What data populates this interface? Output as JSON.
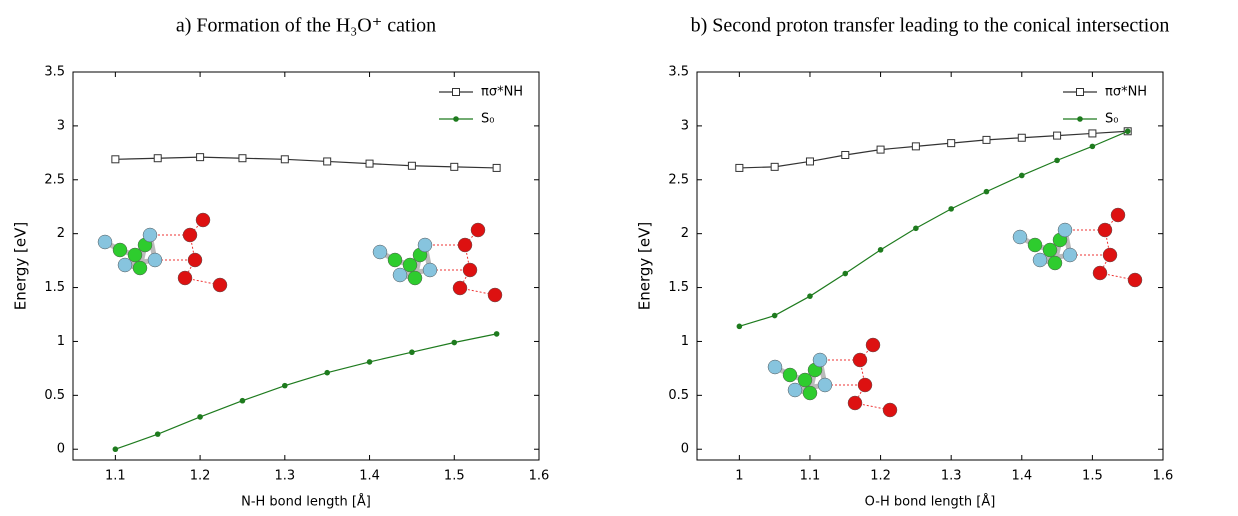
{
  "chart_data": [
    {
      "type": "line",
      "title": "a) Formation of the H₃O⁺ cation",
      "x_label": "N-H bond length [Å]",
      "y_label": "Energy [eV]",
      "x": [
        1.1,
        1.15,
        1.2,
        1.25,
        1.3,
        1.35,
        1.4,
        1.45,
        1.5,
        1.55
      ],
      "series": [
        {
          "name": "πσ*NH",
          "color": "#333333",
          "marker": "square",
          "values": [
            2.69,
            2.7,
            2.71,
            2.7,
            2.69,
            2.67,
            2.65,
            2.63,
            2.62,
            2.61
          ]
        },
        {
          "name": "S₀",
          "color": "#1e7b1e",
          "marker": "circle",
          "values": [
            0.0,
            0.14,
            0.3,
            0.45,
            0.59,
            0.71,
            0.81,
            0.9,
            0.99,
            1.07
          ]
        }
      ],
      "xlim": [
        1.05,
        1.6
      ],
      "ylim": [
        -0.1,
        3.5
      ],
      "xticks": [
        1.1,
        1.2,
        1.3,
        1.4,
        1.5,
        1.6
      ],
      "yticks": [
        0,
        0.5,
        1,
        1.5,
        2,
        2.5,
        3,
        3.5
      ],
      "legend": "top-right"
    },
    {
      "type": "line",
      "title": "b) Second proton transfer leading to the conical intersection",
      "x_label": "O-H bond length [Å]",
      "y_label": "Energy [eV]",
      "x": [
        1.0,
        1.05,
        1.1,
        1.15,
        1.2,
        1.25,
        1.3,
        1.35,
        1.4,
        1.45,
        1.5,
        1.55
      ],
      "series": [
        {
          "name": "πσ*NH",
          "color": "#333333",
          "marker": "square",
          "values": [
            2.61,
            2.62,
            2.67,
            2.73,
            2.78,
            2.81,
            2.84,
            2.87,
            2.89,
            2.91,
            2.93,
            2.95
          ]
        },
        {
          "name": "S₀",
          "color": "#1e7b1e",
          "marker": "circle",
          "values": [
            1.14,
            1.24,
            1.42,
            1.63,
            1.85,
            2.05,
            2.23,
            2.39,
            2.54,
            2.68,
            2.81,
            2.95
          ]
        }
      ],
      "xlim": [
        0.94,
        1.6
      ],
      "ylim": [
        -0.1,
        3.5
      ],
      "xticks": [
        1,
        1.1,
        1.2,
        1.3,
        1.4,
        1.5,
        1.6
      ],
      "yticks": [
        0,
        0.5,
        1,
        1.5,
        2,
        2.5,
        3,
        3.5
      ],
      "legend": "top-right"
    }
  ]
}
